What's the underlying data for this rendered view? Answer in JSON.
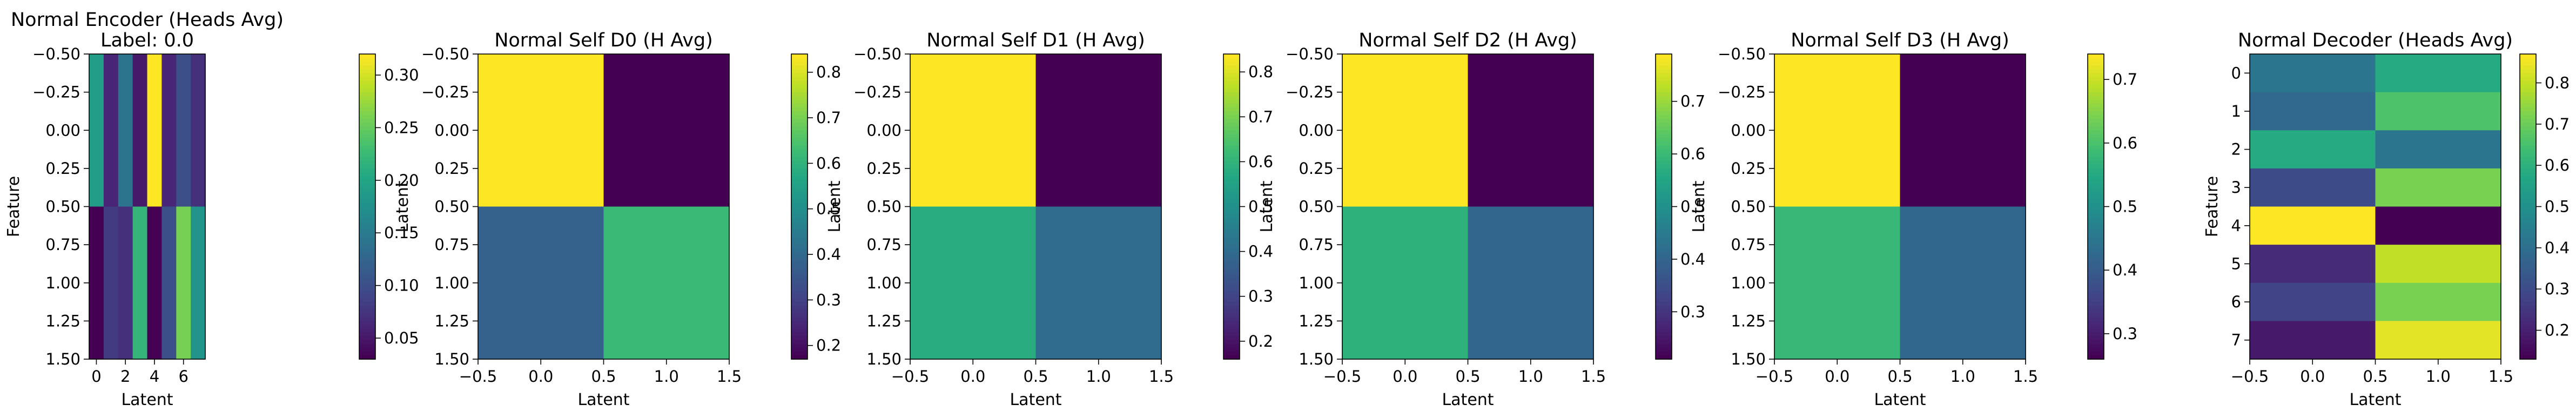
{
  "chart_data": [
    {
      "type": "heatmap",
      "title": "Normal Encoder (Heads Avg)",
      "subtitle": "Label: 0.0",
      "xlabel": "Latent",
      "ylabel": "Feature",
      "x_extent": [
        -0.5,
        7.5
      ],
      "y_extent": [
        -0.5,
        1.5
      ],
      "x_ticks": [
        0,
        2,
        4,
        6
      ],
      "y_ticks": [
        -0.5,
        -0.25,
        0.0,
        0.25,
        0.5,
        0.75,
        1.0,
        1.25,
        1.5
      ],
      "y_tick_labels": [
        "−0.50",
        "−0.25",
        "0.00",
        "0.25",
        "0.50",
        "0.75",
        "1.00",
        "1.25",
        "1.50"
      ],
      "x_tick_labels": [
        "0",
        "2",
        "4",
        "6"
      ],
      "values": [
        [
          0.19,
          0.06,
          0.14,
          0.05,
          0.32,
          0.06,
          0.1,
          0.07
        ],
        [
          0.03,
          0.08,
          0.07,
          0.22,
          0.03,
          0.1,
          0.26,
          0.18
        ]
      ],
      "colorbar": {
        "vmin": 0.03,
        "vmax": 0.32,
        "ticks": [
          0.05,
          0.1,
          0.15,
          0.2,
          0.25,
          0.3
        ],
        "tick_labels": [
          "0.05",
          "0.10",
          "0.15",
          "0.20",
          "0.25",
          "0.30"
        ]
      }
    },
    {
      "type": "heatmap",
      "title": "Normal Self D0 (H Avg)",
      "xlabel": "Latent",
      "ylabel": "Latent",
      "x_extent": [
        -0.5,
        1.5
      ],
      "y_extent": [
        -0.5,
        1.5
      ],
      "x_ticks": [
        -0.5,
        0.0,
        0.5,
        1.0,
        1.5
      ],
      "x_tick_labels": [
        "−0.5",
        "0.0",
        "0.5",
        "1.0",
        "1.5"
      ],
      "y_ticks": [
        -0.5,
        -0.25,
        0.0,
        0.25,
        0.5,
        0.75,
        1.0,
        1.25,
        1.5
      ],
      "y_tick_labels": [
        "−0.50",
        "−0.25",
        "0.00",
        "0.25",
        "0.50",
        "0.75",
        "1.00",
        "1.25",
        "1.50"
      ],
      "values": [
        [
          0.84,
          0.17
        ],
        [
          0.38,
          0.62
        ]
      ],
      "colorbar": {
        "vmin": 0.17,
        "vmax": 0.84,
        "ticks": [
          0.2,
          0.3,
          0.4,
          0.5,
          0.6,
          0.7,
          0.8
        ],
        "tick_labels": [
          "0.2",
          "0.3",
          "0.4",
          "0.5",
          "0.6",
          "0.7",
          "0.8"
        ]
      }
    },
    {
      "type": "heatmap",
      "title": "Normal Self D1 (H Avg)",
      "xlabel": "Latent",
      "ylabel": "Latent",
      "x_extent": [
        -0.5,
        1.5
      ],
      "y_extent": [
        -0.5,
        1.5
      ],
      "x_ticks": [
        -0.5,
        0.0,
        0.5,
        1.0,
        1.5
      ],
      "x_tick_labels": [
        "−0.5",
        "0.0",
        "0.5",
        "1.0",
        "1.5"
      ],
      "y_ticks": [
        -0.5,
        -0.25,
        0.0,
        0.25,
        0.5,
        0.75,
        1.0,
        1.25,
        1.5
      ],
      "y_tick_labels": [
        "−0.50",
        "−0.25",
        "0.00",
        "0.25",
        "0.50",
        "0.75",
        "1.00",
        "1.25",
        "1.50"
      ],
      "values": [
        [
          0.84,
          0.16
        ],
        [
          0.58,
          0.4
        ]
      ],
      "colorbar": {
        "vmin": 0.16,
        "vmax": 0.84,
        "ticks": [
          0.2,
          0.3,
          0.4,
          0.5,
          0.6,
          0.7,
          0.8
        ],
        "tick_labels": [
          "0.2",
          "0.3",
          "0.4",
          "0.5",
          "0.6",
          "0.7",
          "0.8"
        ]
      }
    },
    {
      "type": "heatmap",
      "title": "Normal Self D2 (H Avg)",
      "xlabel": "Latent",
      "ylabel": "Latent",
      "x_extent": [
        -0.5,
        1.5
      ],
      "y_extent": [
        -0.5,
        1.5
      ],
      "x_ticks": [
        -0.5,
        0.0,
        0.5,
        1.0,
        1.5
      ],
      "x_tick_labels": [
        "−0.5",
        "0.0",
        "0.5",
        "1.0",
        "1.5"
      ],
      "y_ticks": [
        -0.5,
        -0.25,
        0.0,
        0.25,
        0.5,
        0.75,
        1.0,
        1.25,
        1.5
      ],
      "y_tick_labels": [
        "−0.50",
        "−0.25",
        "0.00",
        "0.25",
        "0.50",
        "0.75",
        "1.00",
        "1.25",
        "1.50"
      ],
      "values": [
        [
          0.79,
          0.21
        ],
        [
          0.58,
          0.4
        ]
      ],
      "colorbar": {
        "vmin": 0.21,
        "vmax": 0.79,
        "ticks": [
          0.3,
          0.4,
          0.5,
          0.6,
          0.7
        ],
        "tick_labels": [
          "0.3",
          "0.4",
          "0.5",
          "0.6",
          "0.7"
        ]
      }
    },
    {
      "type": "heatmap",
      "title": "Normal Self D3 (H Avg)",
      "xlabel": "Latent",
      "ylabel": "Latent",
      "x_extent": [
        -0.5,
        1.5
      ],
      "y_extent": [
        -0.5,
        1.5
      ],
      "x_ticks": [
        -0.5,
        0.0,
        0.5,
        1.0,
        1.5
      ],
      "x_tick_labels": [
        "−0.5",
        "0.0",
        "0.5",
        "1.0",
        "1.5"
      ],
      "y_ticks": [
        -0.5,
        -0.25,
        0.0,
        0.25,
        0.5,
        0.75,
        1.0,
        1.25,
        1.5
      ],
      "y_tick_labels": [
        "−0.50",
        "−0.25",
        "0.00",
        "0.25",
        "0.50",
        "0.75",
        "1.00",
        "1.25",
        "1.50"
      ],
      "values": [
        [
          0.74,
          0.26
        ],
        [
          0.58,
          0.42
        ]
      ],
      "colorbar": {
        "vmin": 0.26,
        "vmax": 0.74,
        "ticks": [
          0.3,
          0.4,
          0.5,
          0.6,
          0.7
        ],
        "tick_labels": [
          "0.3",
          "0.4",
          "0.5",
          "0.6",
          "0.7"
        ]
      }
    },
    {
      "type": "heatmap",
      "title": "Normal Decoder (Heads Avg)",
      "xlabel": "Latent",
      "ylabel": "Feature",
      "x_extent": [
        -0.5,
        1.5
      ],
      "y_extent": [
        -0.5,
        7.5
      ],
      "x_ticks": [
        -0.5,
        0.0,
        0.5,
        1.0,
        1.5
      ],
      "x_tick_labels": [
        "−0.5",
        "0.0",
        "0.5",
        "1.0",
        "1.5"
      ],
      "y_ticks": [
        0,
        1,
        2,
        3,
        4,
        5,
        6,
        7
      ],
      "y_tick_labels": [
        "0",
        "1",
        "2",
        "3",
        "4",
        "5",
        "6",
        "7"
      ],
      "values": [
        [
          0.42,
          0.58
        ],
        [
          0.38,
          0.66
        ],
        [
          0.58,
          0.42
        ],
        [
          0.3,
          0.72
        ],
        [
          0.87,
          0.13
        ],
        [
          0.22,
          0.8
        ],
        [
          0.28,
          0.72
        ],
        [
          0.18,
          0.84
        ]
      ],
      "colorbar": {
        "vmin": 0.13,
        "vmax": 0.87,
        "ticks": [
          0.2,
          0.3,
          0.4,
          0.5,
          0.6,
          0.7,
          0.8
        ],
        "tick_labels": [
          "0.2",
          "0.3",
          "0.4",
          "0.5",
          "0.6",
          "0.7",
          "0.8"
        ]
      }
    }
  ]
}
